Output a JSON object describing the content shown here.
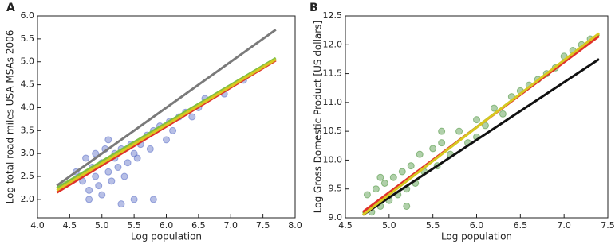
{
  "chart_data": [
    {
      "type": "scatter",
      "panel_label": "A",
      "x_label": "Log population",
      "y_label": "Log total road miles USA MSAs 2006",
      "xlim": [
        4.0,
        8.0
      ],
      "ylim": [
        1.6,
        6.0
      ],
      "xticks": [
        {
          "value": 4,
          "label": "4.0"
        },
        4.5,
        {
          "value": 5,
          "label": "5.0"
        },
        5.5,
        {
          "value": 6,
          "label": "6.0"
        },
        6.5,
        {
          "value": 7,
          "label": "7.0"
        },
        7.5,
        {
          "value": 8,
          "label": "8.0"
        }
      ],
      "yticks": [
        {
          "value": 2,
          "label": "2.0"
        },
        2.5,
        {
          "value": 3,
          "label": "3.0"
        },
        3.5,
        {
          "value": 4,
          "label": "4.0"
        },
        4.5,
        {
          "value": 5,
          "label": "5.0"
        },
        5.5,
        {
          "value": 6,
          "label": "6.0"
        }
      ],
      "series": [
        {
          "style": "markers",
          "color": "#4a5fc1",
          "x": [
            4.6,
            4.7,
            4.75,
            4.8,
            4.85,
            4.9,
            4.9,
            4.95,
            5.0,
            5.0,
            5.05,
            5.1,
            5.1,
            5.15,
            5.2,
            5.2,
            5.25,
            5.3,
            5.35,
            5.4,
            5.45,
            5.5,
            5.55,
            5.6,
            5.7,
            5.75,
            5.8,
            5.9,
            6.0,
            6.05,
            6.1,
            6.2,
            6.3,
            6.4,
            6.5,
            6.6,
            6.9,
            7.2,
            5.5,
            4.8,
            5.8,
            5.3
          ],
          "values": [
            2.6,
            2.4,
            2.9,
            2.2,
            2.7,
            3.0,
            2.5,
            2.3,
            2.8,
            2.1,
            3.1,
            2.6,
            3.3,
            2.4,
            2.9,
            3.0,
            2.7,
            3.1,
            2.5,
            2.8,
            3.2,
            3.0,
            2.9,
            3.2,
            3.4,
            3.1,
            3.5,
            3.6,
            3.3,
            3.7,
            3.5,
            3.8,
            3.9,
            3.8,
            4.0,
            4.2,
            4.3,
            4.6,
            2.0,
            2.0,
            2.0,
            1.9
          ]
        },
        {
          "style": "line",
          "color": "#7a7a7a",
          "x": [
            4.3,
            7.7
          ],
          "values": [
            2.3,
            5.7
          ]
        },
        {
          "style": "line",
          "color": "#e0302a",
          "x": [
            4.3,
            7.7
          ],
          "values": [
            2.15,
            5.03
          ]
        },
        {
          "style": "line",
          "color": "#7fc040",
          "x": [
            4.3,
            7.7
          ],
          "values": [
            2.25,
            5.08
          ]
        },
        {
          "style": "line",
          "color": "#d8c820",
          "x": [
            4.3,
            7.7
          ],
          "values": [
            2.2,
            5.05
          ]
        }
      ]
    },
    {
      "type": "scatter",
      "panel_label": "B",
      "x_label": "Log population",
      "y_label": "Log Gross Domestic Product [US dollars]",
      "xlim": [
        4.5,
        7.5
      ],
      "ylim": [
        9.0,
        12.5
      ],
      "xticks": [
        4.5,
        {
          "value": 5,
          "label": "5.0"
        },
        5.5,
        {
          "value": 6,
          "label": "6.0"
        },
        6.5,
        {
          "value": 7,
          "label": "7.0"
        },
        7.5
      ],
      "yticks": [
        {
          "value": 9,
          "label": "9.0"
        },
        9.5,
        {
          "value": 10,
          "label": "10.0"
        },
        10.5,
        {
          "value": 11,
          "label": "11.0"
        },
        11.5,
        {
          "value": 12,
          "label": "12.0"
        },
        12.5
      ],
      "series": [
        {
          "style": "markers",
          "color": "#3a8a2a",
          "x": [
            4.75,
            4.8,
            4.85,
            4.9,
            4.95,
            5.0,
            5.05,
            5.1,
            5.15,
            5.2,
            5.25,
            5.3,
            5.35,
            5.4,
            5.5,
            5.55,
            5.6,
            5.7,
            5.8,
            5.9,
            6.0,
            6.1,
            6.2,
            6.3,
            6.4,
            6.5,
            6.6,
            6.7,
            6.8,
            6.9,
            7.0,
            7.1,
            7.2,
            7.3,
            4.9,
            5.2,
            5.6,
            6.0
          ],
          "values": [
            9.4,
            9.1,
            9.5,
            9.2,
            9.6,
            9.3,
            9.7,
            9.4,
            9.8,
            9.5,
            9.9,
            9.6,
            10.1,
            9.8,
            10.2,
            9.9,
            10.3,
            10.1,
            10.5,
            10.3,
            10.7,
            10.6,
            10.9,
            10.8,
            11.1,
            11.2,
            11.3,
            11.4,
            11.5,
            11.6,
            11.8,
            11.9,
            12.0,
            12.1,
            9.7,
            9.2,
            10.5,
            10.4
          ]
        },
        {
          "style": "line",
          "color": "#111111",
          "x": [
            4.7,
            7.4
          ],
          "values": [
            9.05,
            11.75
          ]
        },
        {
          "style": "line",
          "color": "#7fc040",
          "x": [
            4.7,
            7.4
          ],
          "values": [
            9.08,
            12.18
          ]
        },
        {
          "style": "line",
          "color": "#e0302a",
          "x": [
            4.7,
            7.4
          ],
          "values": [
            9.1,
            12.15
          ]
        },
        {
          "style": "line",
          "color": "#d8c820",
          "x": [
            4.7,
            7.4
          ],
          "values": [
            9.05,
            12.2
          ]
        }
      ]
    }
  ]
}
